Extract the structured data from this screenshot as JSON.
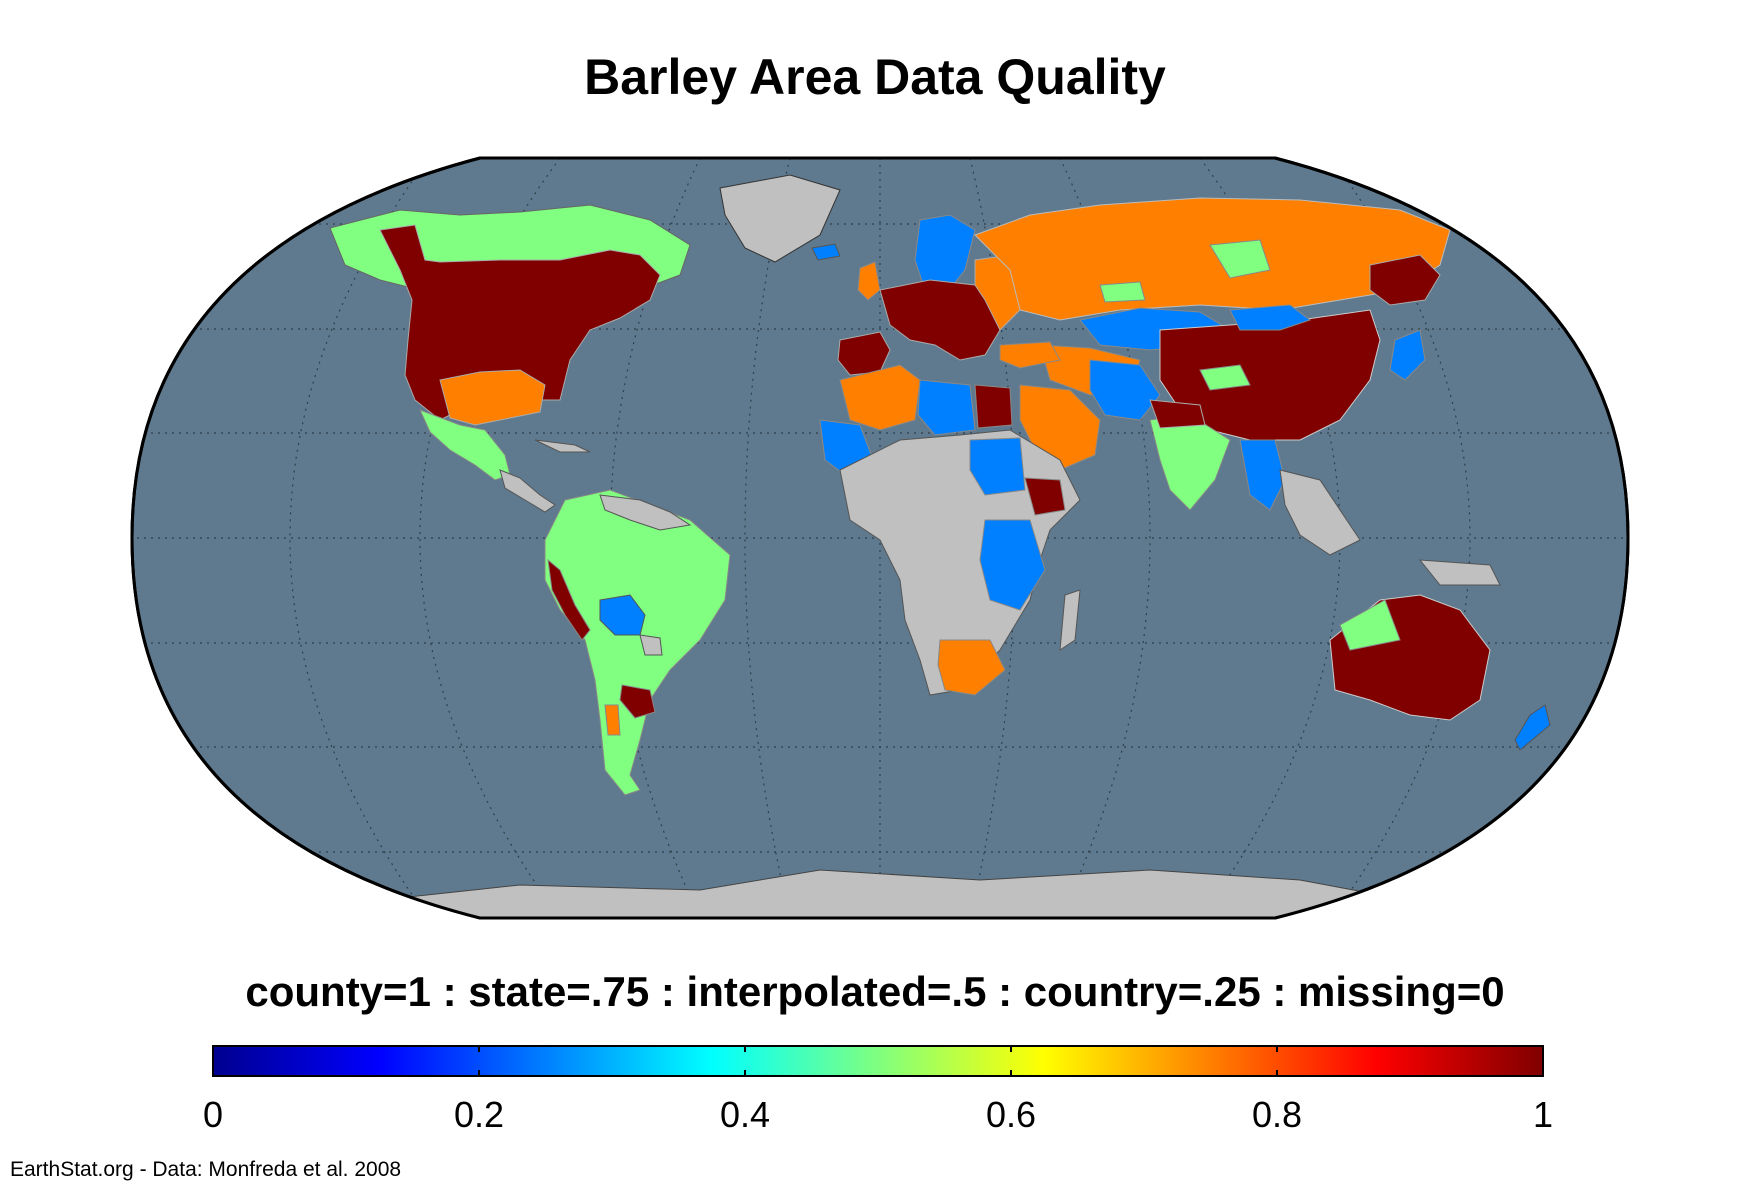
{
  "title": "Barley Area Data Quality",
  "legend_caption": "county=1 : state=.75 : interpolated=.5 : country=.25 : missing=0",
  "colorbar": {
    "min": 0,
    "max": 1,
    "colormap": "jet",
    "ticks": [
      {
        "value": 0,
        "label": "0"
      },
      {
        "value": 0.2,
        "label": "0.2"
      },
      {
        "value": 0.4,
        "label": "0.4"
      },
      {
        "value": 0.6,
        "label": "0.6"
      },
      {
        "value": 0.8,
        "label": "0.8"
      },
      {
        "value": 1,
        "label": "1"
      }
    ]
  },
  "map": {
    "projection": "Robinson",
    "ocean_color": "#5f7a8e",
    "nodata_land_color": "#c0c0c0",
    "graticule": "dotted",
    "class_colors": {
      "county": "#800000",
      "state": "#ff8000",
      "interpolated": "#80ff80",
      "country": "#0080ff",
      "missing": "#c0c0c0"
    }
  },
  "credit": "EarthStat.org - Data: Monfreda et al. 2008"
}
